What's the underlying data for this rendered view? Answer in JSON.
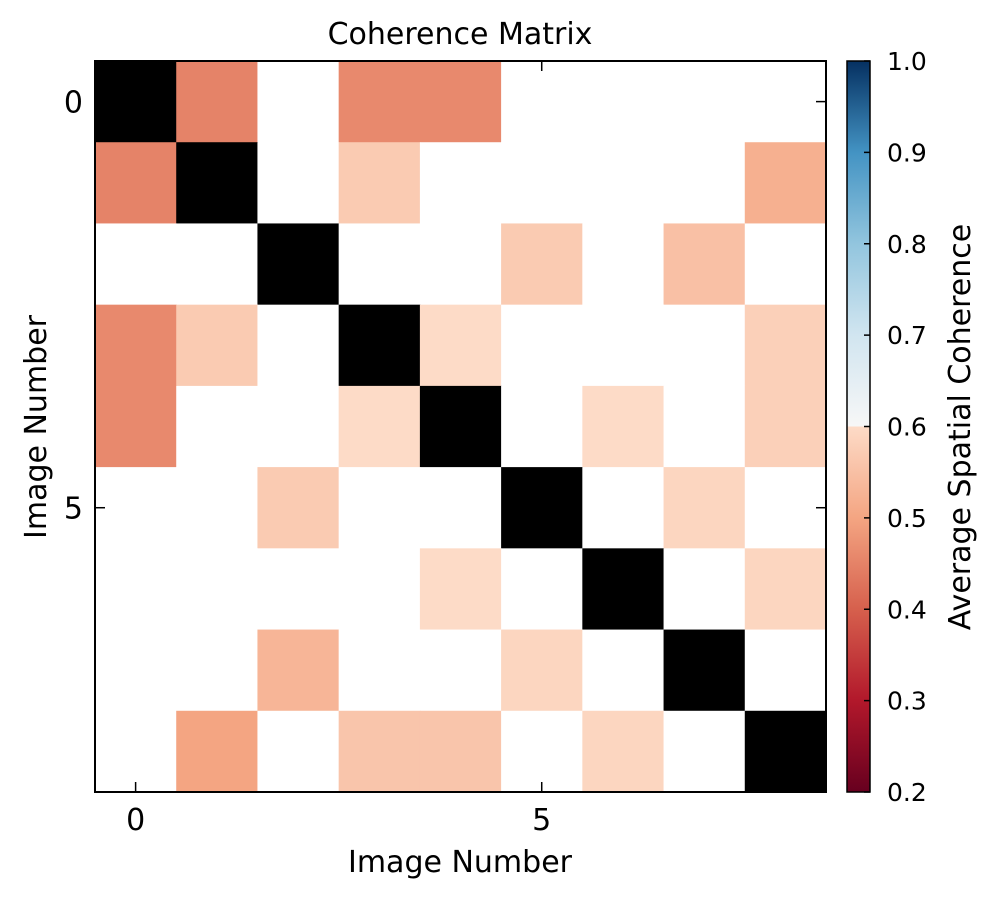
{
  "chart_data": {
    "type": "heatmap",
    "title": "Coherence Matrix",
    "xlabel": "Image Number",
    "ylabel": "Image Number",
    "colorbar_label": "Average Spatial Coherence",
    "x_ticks": [
      0,
      5
    ],
    "y_ticks": [
      0,
      5
    ],
    "colorbar_ticks": [
      "0.2",
      "0.3",
      "0.4",
      "0.5",
      "0.6",
      "0.7",
      "0.8",
      "0.9",
      "1.0"
    ],
    "vmin": 0.2,
    "vmax": 1.0,
    "mask_threshold": 0.7,
    "diagonal_color": "#000000",
    "colormap": "RdBu",
    "size": 9,
    "matrix": [
      [
        null,
        0.45,
        null,
        0.46,
        0.46,
        null,
        null,
        null,
        null
      ],
      [
        0.45,
        null,
        null,
        0.57,
        null,
        null,
        null,
        null,
        0.52
      ],
      [
        null,
        null,
        null,
        null,
        null,
        0.57,
        null,
        0.55,
        null
      ],
      [
        0.46,
        0.57,
        null,
        null,
        0.6,
        null,
        null,
        null,
        0.58
      ],
      [
        0.46,
        null,
        null,
        0.6,
        null,
        null,
        0.6,
        null,
        0.58
      ],
      [
        null,
        null,
        0.57,
        null,
        null,
        null,
        null,
        0.59,
        null
      ],
      [
        null,
        null,
        null,
        null,
        0.6,
        null,
        null,
        null,
        0.59
      ],
      [
        null,
        null,
        0.53,
        null,
        null,
        0.59,
        null,
        null,
        null
      ],
      [
        null,
        0.5,
        null,
        0.56,
        0.56,
        null,
        0.59,
        null,
        null
      ]
    ]
  }
}
